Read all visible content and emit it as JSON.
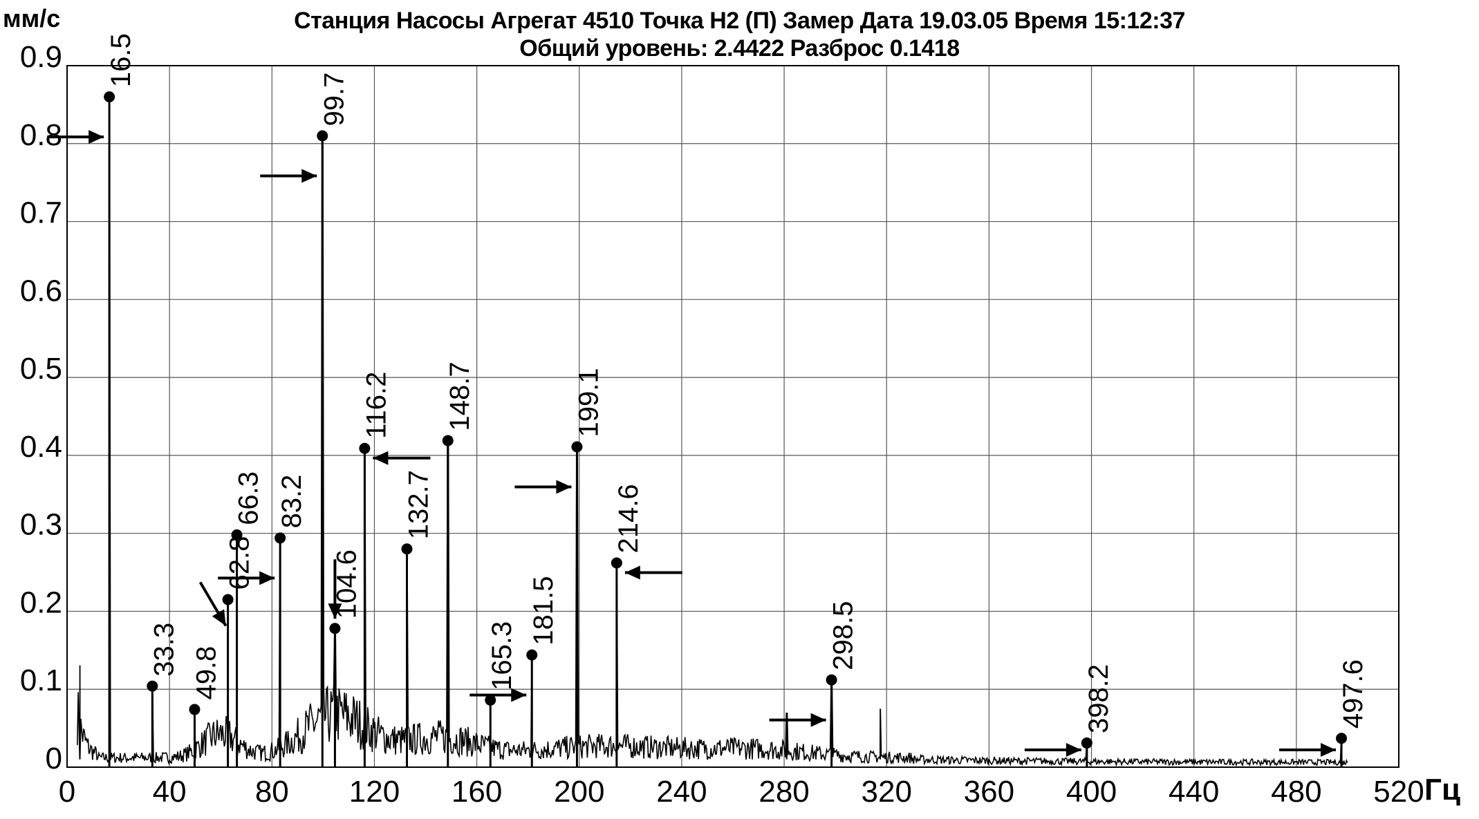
{
  "chart_data": {
    "type": "line",
    "title": "Станция Насосы  Агрегат 4510  Точка Н2 (П)  Замер  Дата 19.03.05  Время 15:12:37",
    "subtitle": "Общий уровень: 2.4422 Разброс 0.1418",
    "xlabel": "Гц",
    "ylabel": "мм/с",
    "xlim": [
      0,
      520
    ],
    "ylim": [
      0,
      0.9
    ],
    "grid": true,
    "x_ticks": [
      "0",
      "40",
      "80",
      "120",
      "160",
      "200",
      "240",
      "280",
      "320",
      "360",
      "400",
      "440",
      "480",
      "520"
    ],
    "y_ticks": [
      "0",
      "0.1",
      "0.2",
      "0.3",
      "0.4",
      "0.5",
      "0.6",
      "0.7",
      "0.8",
      "0.9"
    ],
    "peaks": [
      {
        "label": "16.5",
        "x": 16.5,
        "y": 0.86,
        "arrow": "left"
      },
      {
        "label": "33.3",
        "x": 33.3,
        "y": 0.104
      },
      {
        "label": "49.8",
        "x": 49.8,
        "y": 0.074
      },
      {
        "label": "62.8",
        "x": 62.8,
        "y": 0.215,
        "arrow": "slash"
      },
      {
        "label": "66.3",
        "x": 66.3,
        "y": 0.298
      },
      {
        "label": "83.2",
        "x": 83.2,
        "y": 0.294,
        "arrow": "left"
      },
      {
        "label": "99.7",
        "x": 99.7,
        "y": 0.81,
        "arrow": "left"
      },
      {
        "label": "104.6",
        "x": 104.6,
        "y": 0.178,
        "arrow": "top"
      },
      {
        "label": "116.2",
        "x": 116.2,
        "y": 0.409,
        "arrow": "right"
      },
      {
        "label": "132.7",
        "x": 132.7,
        "y": 0.28
      },
      {
        "label": "148.7",
        "x": 148.7,
        "y": 0.419
      },
      {
        "label": "165.3",
        "x": 165.3,
        "y": 0.086
      },
      {
        "label": "181.5",
        "x": 181.5,
        "y": 0.144,
        "arrow": "left"
      },
      {
        "label": "199.1",
        "x": 199.1,
        "y": 0.411,
        "arrow": "left"
      },
      {
        "label": "214.6",
        "x": 214.6,
        "y": 0.262,
        "arrow": "right"
      },
      {
        "label": "298.5",
        "x": 298.5,
        "y": 0.112,
        "arrow": "left"
      },
      {
        "label": "398.2",
        "x": 398.2,
        "y": 0.031,
        "arrow": "left"
      },
      {
        "label": "497.6",
        "x": 497.6,
        "y": 0.037,
        "arrow": "left"
      }
    ],
    "minor_peaks": [
      {
        "x": 5,
        "y": 0.13
      },
      {
        "x": 281,
        "y": 0.07
      },
      {
        "x": 317.5,
        "y": 0.075
      }
    ],
    "noise_end_x": 500
  }
}
